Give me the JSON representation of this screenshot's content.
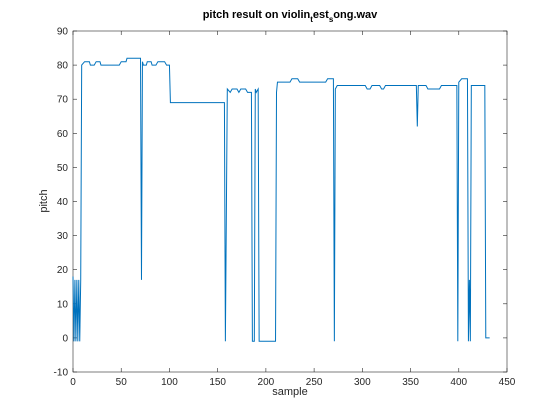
{
  "chart_data": {
    "type": "line",
    "title": [
      "pitch result on violin",
      "t",
      "est",
      "s",
      "ong.wav"
    ],
    "xlabel": "sample",
    "ylabel": "pitch",
    "xlim": [
      0,
      450
    ],
    "xticks": [
      0,
      50,
      100,
      150,
      200,
      250,
      300,
      350,
      400,
      450
    ],
    "ylim": [
      -10,
      90
    ],
    "yticks": [
      -10,
      0,
      10,
      20,
      30,
      40,
      50,
      60,
      70,
      80,
      90
    ],
    "series": [
      {
        "color": "#0072bd",
        "x": [
          0,
          1,
          2,
          3,
          4,
          5,
          6,
          7,
          8,
          9,
          12,
          17,
          18,
          22,
          24,
          28,
          29,
          48,
          50,
          55,
          56,
          70,
          71,
          72,
          73,
          76,
          77,
          81,
          82,
          86,
          88,
          95,
          97,
          100,
          101,
          157,
          158,
          160,
          163,
          165,
          170,
          172,
          174,
          179,
          181,
          185,
          186,
          188,
          189,
          190,
          192,
          193,
          210,
          211,
          212,
          225,
          227,
          233,
          235,
          262,
          264,
          270,
          271,
          272,
          274,
          303,
          305,
          308,
          310,
          318,
          320,
          322,
          324,
          356,
          357,
          358,
          366,
          368,
          380,
          382,
          398,
          399,
          400,
          403,
          409,
          410,
          411,
          412,
          413,
          427,
          428,
          432
        ],
        "values": [
          18,
          -1,
          17,
          -1,
          17,
          -1,
          17,
          -1,
          17,
          80,
          81,
          81,
          80,
          80,
          81,
          81,
          80,
          80,
          81,
          81,
          82,
          82,
          17,
          81,
          80,
          80,
          81,
          81,
          80,
          80,
          81,
          81,
          80,
          80,
          69,
          69,
          -1,
          73,
          72,
          73,
          73,
          72,
          73,
          73,
          72,
          72,
          -1,
          -1,
          73,
          72,
          73,
          -1,
          -1,
          72,
          75,
          75,
          76,
          76,
          75,
          75,
          76,
          76,
          -1,
          73,
          74,
          74,
          73,
          73,
          74,
          74,
          73,
          73,
          74,
          74,
          62,
          74,
          74,
          73,
          73,
          74,
          74,
          -1,
          75,
          76,
          76,
          -1,
          17,
          -1,
          74,
          74,
          0,
          0
        ]
      }
    ]
  }
}
